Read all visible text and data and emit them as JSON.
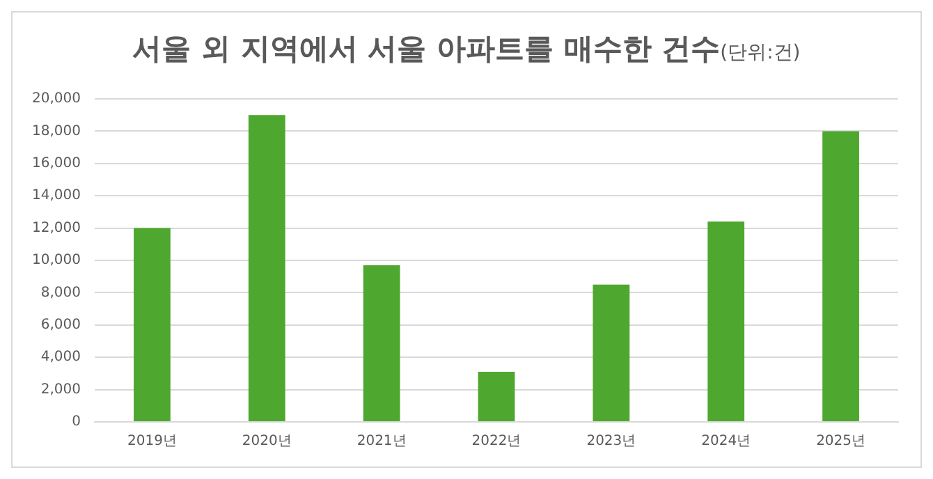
{
  "chart_data": {
    "type": "bar",
    "title": "서울 외 지역에서 서울 아파트를 매수한 건수",
    "subtitle": "(단위:건)",
    "categories": [
      "2019년",
      "2020년",
      "2021년",
      "2022년",
      "2023년",
      "2024년",
      "2025년"
    ],
    "values": [
      12000,
      19000,
      9700,
      3100,
      8500,
      12400,
      18000
    ],
    "color": "#4ea72e",
    "ylim": [
      0,
      20000
    ],
    "yticks": [
      {
        "value": 0,
        "label": "0"
      },
      {
        "value": 2000,
        "label": "2,000"
      },
      {
        "value": 4000,
        "label": "4,000"
      },
      {
        "value": 6000,
        "label": "6,000"
      },
      {
        "value": 8000,
        "label": "8,000"
      },
      {
        "value": 10000,
        "label": "10,000"
      },
      {
        "value": 12000,
        "label": "12,000"
      },
      {
        "value": 14000,
        "label": "14,000"
      },
      {
        "value": 16000,
        "label": "16,000"
      },
      {
        "value": 18000,
        "label": "18,000"
      },
      {
        "value": 20000,
        "label": "20,000"
      }
    ],
    "grid": "y"
  }
}
